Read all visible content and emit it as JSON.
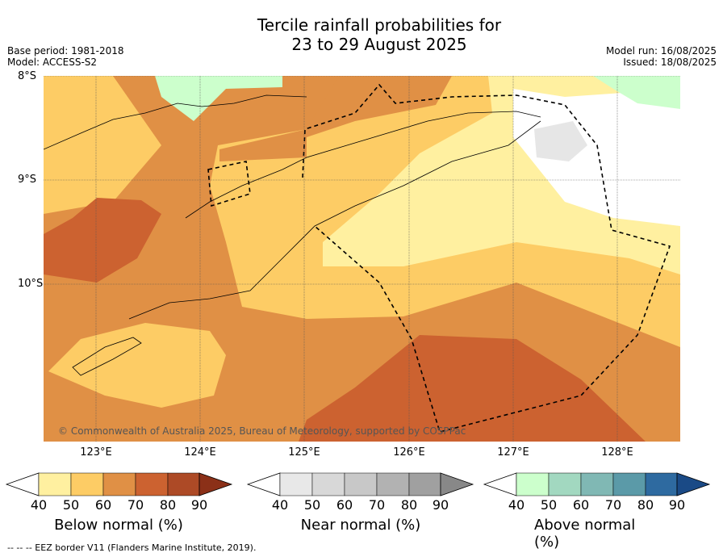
{
  "title_line1": "Tercile rainfall probabilities for",
  "title_line2": "23 to 29 August 2025",
  "meta_left": {
    "base_period": "Base period: 1981-2018",
    "model": "Model: ACCESS-S2"
  },
  "meta_right": {
    "model_run": "Model run: 16/08/2025",
    "issued": "Issued: 18/08/2025"
  },
  "map": {
    "lat_labels": [
      "8°S",
      "9°S",
      "10°S"
    ],
    "lon_labels": [
      "123°E",
      "124°E",
      "125°E",
      "126°E",
      "127°E",
      "128°E"
    ],
    "copyright": "© Commonwealth of Australia 2025, Bureau of Meteorology, supported by COSPPac"
  },
  "colorbars": [
    {
      "title": "Below normal (%)",
      "ticks": [
        "40",
        "50",
        "60",
        "70",
        "80",
        "90"
      ],
      "colors": [
        "#fff0a0",
        "#fdcc65",
        "#e09045",
        "#cc6230",
        "#ad4a26",
        "#8b3018"
      ]
    },
    {
      "title": "Near normal (%)",
      "ticks": [
        "40",
        "50",
        "60",
        "70",
        "80",
        "90"
      ],
      "colors": [
        "#e8e8e8",
        "#d8d8d8",
        "#c8c8c8",
        "#b2b2b2",
        "#a0a0a0",
        "#888888"
      ]
    },
    {
      "title": "Above normal (%)",
      "ticks": [
        "40",
        "50",
        "60",
        "70",
        "80",
        "90"
      ],
      "colors": [
        "#ccffcc",
        "#a2d8c0",
        "#80b8b4",
        "#5b9aa8",
        "#2e6aa0",
        "#1a4a86"
      ]
    }
  ],
  "footnote": "--  --  -- EEZ border V11 (Flanders Marine Institute, 2019)."
}
